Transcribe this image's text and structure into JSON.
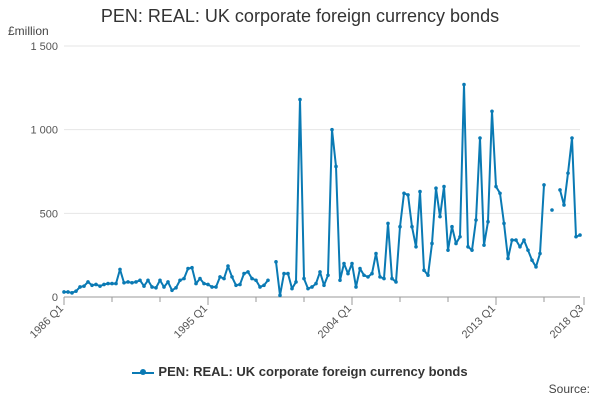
{
  "chart_data": {
    "type": "line",
    "title": "PEN: REAL: UK corporate foreign currency bonds",
    "ylabel": "£million",
    "xlabel": "",
    "ylim": [
      0,
      1500
    ],
    "yticks": [
      0,
      500,
      1000,
      1500
    ],
    "ytick_labels": [
      "0",
      "500",
      "1 000",
      "1 500"
    ],
    "x_start": "1986 Q1",
    "xtick_labels": [
      {
        "index": 0,
        "label": "1986 Q1"
      },
      {
        "index": 36,
        "label": "1995 Q1"
      },
      {
        "index": 72,
        "label": "2004 Q1"
      },
      {
        "index": 108,
        "label": "2013 Q1"
      },
      {
        "index": 130,
        "label": "2018 Q3"
      }
    ],
    "grid": true,
    "legend": "bottom",
    "color": "#0a7ab4",
    "series": [
      {
        "name": "PEN: REAL: UK corporate foreign currency bonds",
        "values": [
          30,
          30,
          25,
          35,
          60,
          65,
          90,
          70,
          75,
          65,
          75,
          80,
          80,
          80,
          165,
          85,
          90,
          85,
          90,
          100,
          65,
          100,
          60,
          55,
          100,
          60,
          90,
          40,
          55,
          100,
          110,
          170,
          175,
          80,
          110,
          80,
          75,
          60,
          60,
          120,
          110,
          185,
          120,
          70,
          75,
          140,
          150,
          110,
          100,
          60,
          70,
          100,
          null,
          210,
          10,
          140,
          140,
          50,
          90,
          1180,
          110,
          50,
          60,
          80,
          150,
          70,
          130,
          1000,
          780,
          100,
          200,
          140,
          200,
          60,
          170,
          130,
          120,
          140,
          260,
          120,
          110,
          440,
          110,
          90,
          420,
          620,
          610,
          420,
          300,
          630,
          160,
          130,
          320,
          650,
          480,
          660,
          280,
          420,
          320,
          360,
          1270,
          300,
          280,
          460,
          950,
          310,
          450,
          1110,
          660,
          620,
          440,
          230,
          340,
          340,
          300,
          340,
          280,
          220,
          180,
          260,
          670,
          null,
          520,
          null,
          640,
          550,
          740,
          950,
          360,
          370
        ]
      }
    ],
    "source_label": "Source:"
  }
}
